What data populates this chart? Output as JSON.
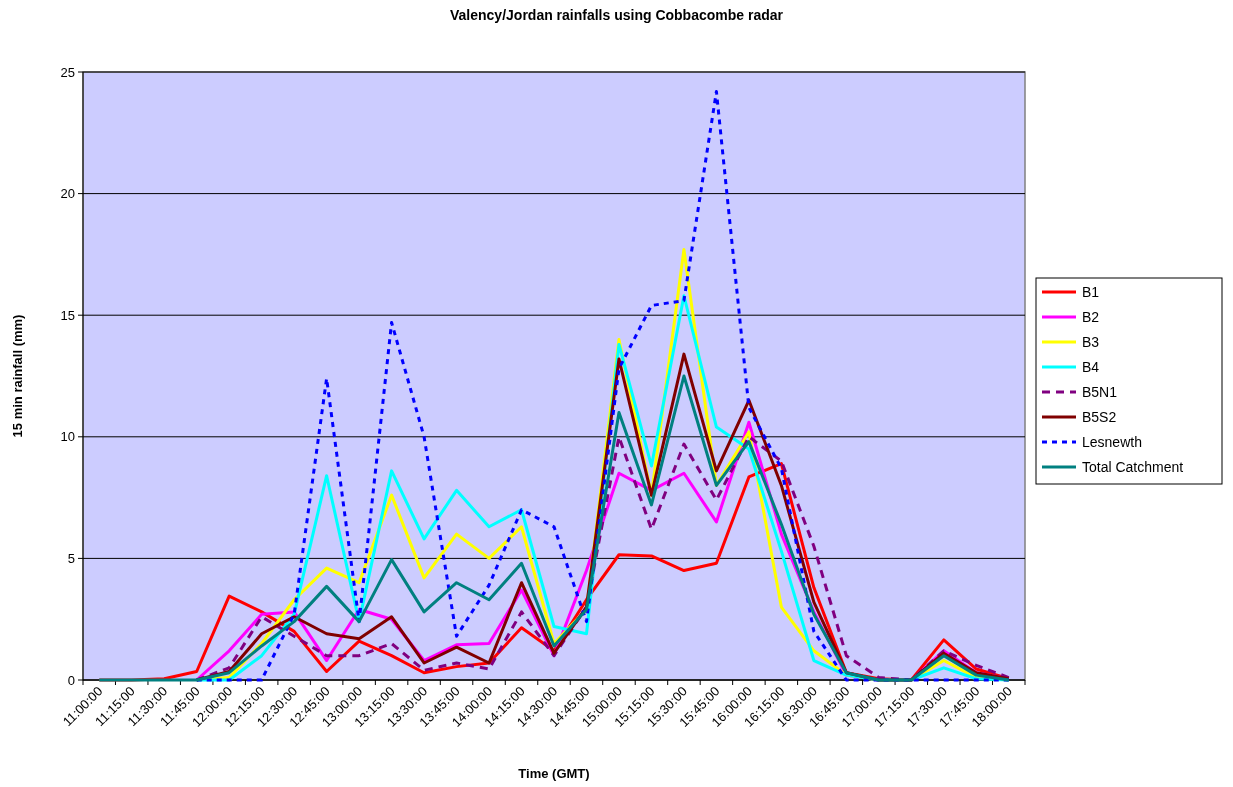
{
  "chart_data": {
    "type": "line",
    "title": "Valency/Jordan rainfalls using Cobbacombe radar",
    "xlabel": "Time (GMT)",
    "ylabel": "15 min rainfall (mm)",
    "categories": [
      "11:00:00",
      "11:15:00",
      "11:30:00",
      "11:45:00",
      "12:00:00",
      "12:15:00",
      "12:30:00",
      "12:45:00",
      "13:00:00",
      "13:15:00",
      "13:30:00",
      "13:45:00",
      "14:00:00",
      "14:15:00",
      "14:30:00",
      "14:45:00",
      "15:00:00",
      "15:15:00",
      "15:30:00",
      "15:45:00",
      "16:00:00",
      "16:15:00",
      "16:30:00",
      "16:45:00",
      "17:00:00",
      "17:15:00",
      "17:30:00",
      "17:45:00",
      "18:00:00"
    ],
    "ylim": [
      0,
      25
    ],
    "yticks": [
      0,
      5,
      10,
      15,
      20,
      25
    ],
    "grid": "y",
    "legend": "right",
    "marker": "none",
    "series": [
      {
        "name": "B1",
        "color": "#ff0000",
        "line_style": "solid",
        "values": [
          0,
          0,
          0.05,
          0.35,
          3.45,
          2.8,
          2.0,
          0.35,
          1.6,
          1.0,
          0.3,
          0.55,
          0.7,
          2.15,
          1.2,
          3.3,
          5.15,
          5.1,
          4.5,
          4.8,
          8.35,
          8.9,
          3.8,
          0.3,
          0.05,
          0,
          1.65,
          0.45,
          0.05
        ]
      },
      {
        "name": "B2",
        "color": "#ff00ff",
        "line_style": "solid",
        "values": [
          null,
          null,
          null,
          0,
          1.2,
          2.7,
          2.8,
          0.8,
          2.9,
          2.5,
          0.8,
          1.45,
          1.5,
          3.7,
          1.0,
          4.5,
          8.5,
          7.8,
          8.5,
          6.5,
          10.6,
          6.0,
          2.8,
          0.2,
          0,
          0,
          1.2,
          0.3,
          0.05
        ]
      },
      {
        "name": "B3",
        "color": "#ffff00",
        "line_style": "solid",
        "values": [
          null,
          null,
          null,
          0,
          0.1,
          1.5,
          3.3,
          4.6,
          4.0,
          7.6,
          4.2,
          6.0,
          5.0,
          6.3,
          1.5,
          2.9,
          14.0,
          7.6,
          17.7,
          8.0,
          10.2,
          3.0,
          1.2,
          0.2,
          0,
          0,
          0.8,
          0.1,
          0
        ]
      },
      {
        "name": "B4",
        "color": "#00ffff",
        "line_style": "solid",
        "values": [
          null,
          null,
          null,
          0,
          0,
          1.0,
          2.7,
          8.4,
          2.4,
          8.6,
          5.8,
          7.8,
          6.3,
          7.0,
          2.2,
          1.9,
          13.8,
          8.8,
          15.8,
          10.4,
          9.5,
          5.3,
          0.8,
          0.2,
          0,
          0,
          0.5,
          0.05,
          0
        ]
      },
      {
        "name": "B5N1",
        "color": "#800080",
        "line_style": "dashed",
        "values": [
          null,
          null,
          null,
          0,
          0.5,
          2.6,
          1.8,
          1.0,
          1.0,
          1.5,
          0.4,
          0.7,
          0.45,
          2.8,
          1.0,
          3.0,
          10.0,
          6.2,
          9.7,
          7.4,
          10.0,
          9.0,
          5.5,
          1.0,
          0.1,
          0,
          1.2,
          0.6,
          0.1
        ]
      },
      {
        "name": "B5S2",
        "color": "#800000",
        "line_style": "solid",
        "values": [
          null,
          null,
          null,
          0,
          0.35,
          1.9,
          2.6,
          1.9,
          1.7,
          2.6,
          0.7,
          1.35,
          0.7,
          4.0,
          1.1,
          3.0,
          13.2,
          7.6,
          13.4,
          8.6,
          11.5,
          8.0,
          3.2,
          0.3,
          0,
          0,
          1.1,
          0.3,
          0.05
        ]
      },
      {
        "name": "Lesnewth",
        "color": "#0000ff",
        "line_style": "dotted",
        "values": [
          null,
          null,
          null,
          0,
          0,
          0,
          2.7,
          12.4,
          2.4,
          14.7,
          10.0,
          1.8,
          3.9,
          7.0,
          6.3,
          2.4,
          12.8,
          15.4,
          15.6,
          24.2,
          11.2,
          8.7,
          2.0,
          0,
          0,
          0,
          0,
          0,
          0
        ]
      },
      {
        "name": "Total Catchment",
        "color": "#008080",
        "line_style": "solid",
        "values": [
          0,
          0,
          0,
          0,
          0.3,
          1.4,
          2.4,
          3.85,
          2.4,
          4.95,
          2.8,
          4.0,
          3.3,
          4.8,
          1.4,
          2.9,
          11.0,
          7.2,
          12.5,
          8.0,
          9.8,
          6.4,
          2.7,
          0.3,
          0,
          0,
          1.0,
          0.2,
          0
        ]
      }
    ]
  }
}
